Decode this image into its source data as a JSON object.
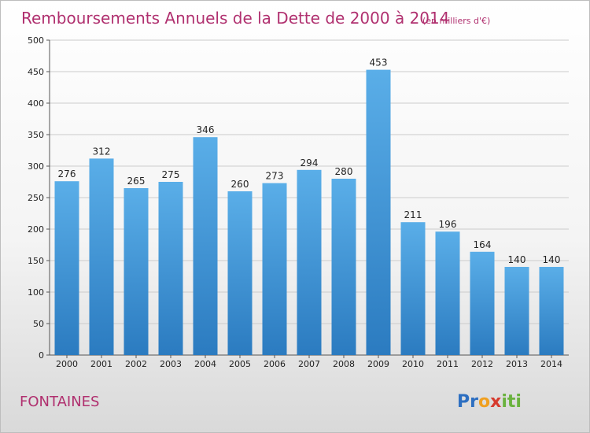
{
  "chart_data": {
    "type": "bar",
    "title": "Remboursements Annuels de la Dette de 2000 à 2014",
    "subtitle": "(en milliers d'€)",
    "categories": [
      "2000",
      "2001",
      "2002",
      "2003",
      "2004",
      "2005",
      "2006",
      "2007",
      "2008",
      "2009",
      "2010",
      "2011",
      "2012",
      "2013",
      "2014"
    ],
    "values": [
      276,
      312,
      265,
      275,
      346,
      260,
      273,
      294,
      280,
      453,
      211,
      196,
      164,
      140,
      140
    ],
    "xlabel": "",
    "ylabel": "",
    "ylim": [
      0,
      500
    ],
    "yticks": [
      0,
      50,
      100,
      150,
      200,
      250,
      300,
      350,
      400,
      450,
      500
    ],
    "grid": true,
    "data_labels": true,
    "bar_color_top": "#5aaee8",
    "bar_color_bottom": "#2b7bc0"
  },
  "footer": {
    "city": "FONTAINES",
    "logo_letters": [
      "P",
      "r",
      "o",
      "x",
      "i",
      "t",
      "i"
    ],
    "logo_colors": [
      "#2d6fc1",
      "#2d6fc1",
      "#f0a020",
      "#d63a2e",
      "#6ab23e",
      "#6ab23e",
      "#6ab23e"
    ]
  },
  "colors": {
    "accent": "#b0306f",
    "grid": "#cccccc"
  }
}
